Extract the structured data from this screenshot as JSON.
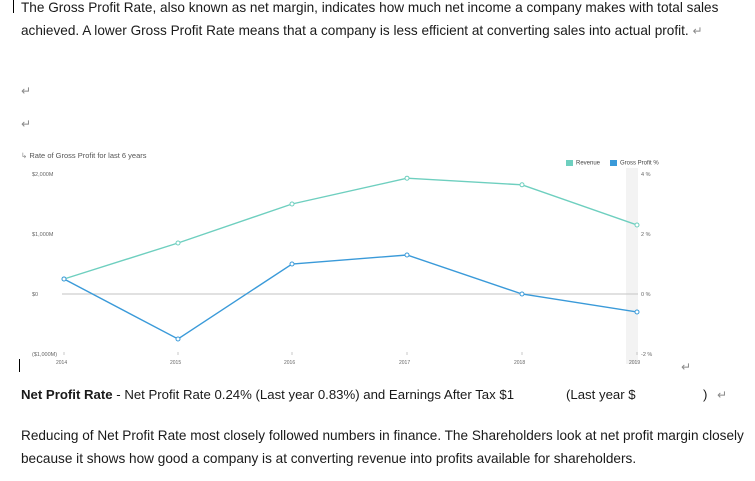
{
  "document": {
    "paragraph1": "The Gross Profit Rate, also known as net margin, indicates how much net income a company makes with total sales achieved. A lower Gross Profit Rate means that a company is less efficient at converting sales into actual profit.",
    "return_mark": "↵",
    "net_profit_heading": "Net Profit Rate",
    "net_profit_text": " - Net Profit Rate 0.24% (Last year 0.83%) and Earnings After Tax $1",
    "last_year_text": "(Last year $",
    "close_paren": ")",
    "paragraph3": "Reducing of Net Profit Rate most closely followed numbers in finance. The Shareholders look at net profit margin closely because it shows how good a company is at converting revenue into profits available for shareholders."
  },
  "chart_data": {
    "type": "line",
    "title": "Rate of Gross Profit for last 6 years",
    "categories": [
      "2014",
      "2015",
      "2016",
      "2017",
      "2018",
      "2019"
    ],
    "series": [
      {
        "name": "Revenue",
        "axis": "left",
        "color": "#6ecfbf",
        "values": [
          250,
          850,
          1500,
          1930,
          1820,
          1150
        ]
      },
      {
        "name": "Gross Profit %",
        "axis": "right",
        "color": "#3a9ad9",
        "values": [
          0.5,
          -1.5,
          1.0,
          1.3,
          0.0,
          -0.6
        ]
      }
    ],
    "y_left": {
      "ticks": [
        "$2,000M",
        "$1,000M",
        "$0",
        "($1,000M)"
      ],
      "tick_values": [
        2000,
        1000,
        0,
        -1000
      ],
      "ylim": [
        -1000,
        2000
      ]
    },
    "y_right": {
      "ticks": [
        "4 %",
        "2 %",
        "0 %",
        "-2 %"
      ],
      "tick_values": [
        4,
        2,
        0,
        -2
      ],
      "ylim": [
        -2,
        4
      ]
    },
    "legend_position": "top-right"
  }
}
